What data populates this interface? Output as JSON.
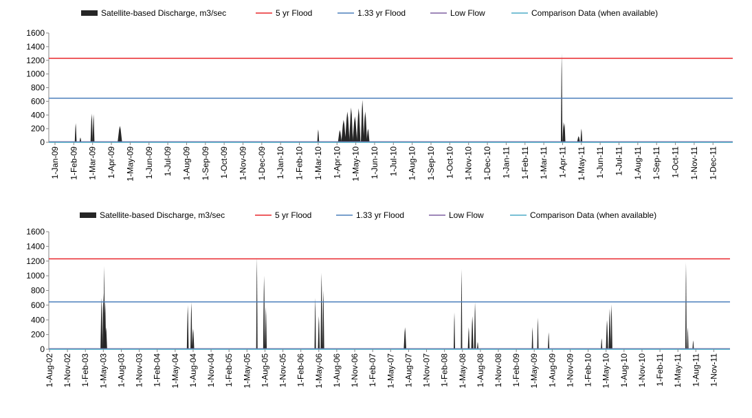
{
  "chart_data": [
    {
      "type": "area",
      "ylim": [
        0,
        1600
      ],
      "yticks": [
        0,
        200,
        400,
        600,
        800,
        1000,
        1200,
        1400,
        1600
      ],
      "x_tick_labels": [
        "1-Jan-09",
        "1-Feb-09",
        "1-Mar-09",
        "1-Apr-09",
        "1-May-09",
        "1-Jun-09",
        "1-Jul-09",
        "1-Aug-09",
        "1-Sep-09",
        "1-Oct-09",
        "1-Nov-09",
        "1-Dec-09",
        "1-Jan-10",
        "1-Feb-10",
        "1-Mar-10",
        "1-Apr-10",
        "1-May-10",
        "1-Jun-10",
        "1-Jul-10",
        "1-Aug-10",
        "1-Sep-10",
        "1-Oct-10",
        "1-Nov-10",
        "1-Dec-10",
        "1-Jan-11",
        "1-Feb-11",
        "1-Mar-11",
        "1-Apr-11",
        "1-May-11",
        "1-Jun-11",
        "1-Jul-11",
        "1-Aug-11",
        "1-Sep-11",
        "1-Oct-11",
        "1-Nov-11",
        "1-Dec-11"
      ],
      "legend": {
        "placement": "top",
        "entries": [
          {
            "label": "Satellite-based Discharge, m3/sec",
            "color": "#262626",
            "kind": "area"
          },
          {
            "label": "5 yr Flood",
            "color": "#e8262a",
            "kind": "line"
          },
          {
            "label": "1.33 yr Flood",
            "color": "#4a7ebb",
            "kind": "line"
          },
          {
            "label": "Low Flow",
            "color": "#7d5fa0",
            "kind": "line"
          },
          {
            "label": "Comparison Data (when available)",
            "color": "#4bacc6",
            "kind": "line"
          }
        ]
      },
      "reference_lines": {
        "flood_5yr": 1230,
        "flood_1_33yr": 645,
        "low_flow": 0
      },
      "discharge_peaks": [
        {
          "x": 1.1,
          "y": 280,
          "w": 0.05
        },
        {
          "x": 1.35,
          "y": 70,
          "w": 0.05
        },
        {
          "x": 1.95,
          "y": 420,
          "w": 0.06
        },
        {
          "x": 2.05,
          "y": 410,
          "w": 0.05
        },
        {
          "x": 3.45,
          "y": 240,
          "w": 0.12
        },
        {
          "x": 14.0,
          "y": 190,
          "w": 0.05
        },
        {
          "x": 15.15,
          "y": 180,
          "w": 0.1
        },
        {
          "x": 15.35,
          "y": 330,
          "w": 0.12
        },
        {
          "x": 15.55,
          "y": 450,
          "w": 0.12
        },
        {
          "x": 15.75,
          "y": 510,
          "w": 0.1
        },
        {
          "x": 15.95,
          "y": 380,
          "w": 0.12
        },
        {
          "x": 16.15,
          "y": 500,
          "w": 0.1
        },
        {
          "x": 16.35,
          "y": 620,
          "w": 0.08
        },
        {
          "x": 16.5,
          "y": 450,
          "w": 0.1
        },
        {
          "x": 16.65,
          "y": 200,
          "w": 0.08
        },
        {
          "x": 26.95,
          "y": 1300,
          "w": 0.04
        },
        {
          "x": 27.05,
          "y": 300,
          "w": 0.06
        },
        {
          "x": 27.1,
          "y": 280,
          "w": 0.05
        },
        {
          "x": 27.85,
          "y": 90,
          "w": 0.08
        },
        {
          "x": 28.0,
          "y": 200,
          "w": 0.05
        }
      ]
    },
    {
      "type": "area",
      "ylim": [
        0,
        1600
      ],
      "yticks": [
        0,
        200,
        400,
        600,
        800,
        1000,
        1200,
        1400,
        1600
      ],
      "x_tick_labels": [
        "1-Aug-02",
        "1-Nov-02",
        "1-Feb-03",
        "1-May-03",
        "1-Aug-03",
        "1-Nov-03",
        "1-Feb-04",
        "1-May-04",
        "1-Aug-04",
        "1-Nov-04",
        "1-Feb-05",
        "1-May-05",
        "1-Aug-05",
        "1-Nov-05",
        "1-Feb-06",
        "1-May-06",
        "1-Aug-06",
        "1-Nov-06",
        "1-Feb-07",
        "1-May-07",
        "1-Aug-07",
        "1-Nov-07",
        "1-Feb-08",
        "1-May-08",
        "1-Aug-08",
        "1-Nov-08",
        "1-Feb-09",
        "1-May-09",
        "1-Aug-09",
        "1-Nov-09",
        "1-Feb-10",
        "1-May-10",
        "1-Aug-10",
        "1-Nov-10",
        "1-Feb-11",
        "1-May-11",
        "1-Aug-11",
        "1-Nov-11"
      ],
      "legend": {
        "placement": "top",
        "entries": [
          {
            "label": "Satellite-based Discharge, m3/sec",
            "color": "#262626",
            "kind": "area"
          },
          {
            "label": "5 yr Flood",
            "color": "#e8262a",
            "kind": "line"
          },
          {
            "label": "1.33 yr Flood",
            "color": "#4a7ebb",
            "kind": "line"
          },
          {
            "label": "Low Flow",
            "color": "#7d5fa0",
            "kind": "line"
          },
          {
            "label": "Comparison Data (when available)",
            "color": "#4bacc6",
            "kind": "line"
          }
        ]
      },
      "reference_lines": {
        "flood_5yr": 1230,
        "flood_1_33yr": 645,
        "low_flow": 0
      },
      "discharge_peaks": [
        {
          "x": 2.9,
          "y": 700,
          "w": 0.06
        },
        {
          "x": 3.0,
          "y": 760,
          "w": 0.05
        },
        {
          "x": 3.05,
          "y": 1130,
          "w": 0.04
        },
        {
          "x": 3.1,
          "y": 650,
          "w": 0.05
        },
        {
          "x": 3.15,
          "y": 300,
          "w": 0.06
        },
        {
          "x": 7.7,
          "y": 600,
          "w": 0.05
        },
        {
          "x": 7.9,
          "y": 640,
          "w": 0.05
        },
        {
          "x": 8.0,
          "y": 280,
          "w": 0.06
        },
        {
          "x": 11.55,
          "y": 1250,
          "w": 0.03
        },
        {
          "x": 11.95,
          "y": 1000,
          "w": 0.05
        },
        {
          "x": 12.05,
          "y": 580,
          "w": 0.05
        },
        {
          "x": 14.8,
          "y": 700,
          "w": 0.04
        },
        {
          "x": 15.0,
          "y": 450,
          "w": 0.05
        },
        {
          "x": 15.15,
          "y": 1040,
          "w": 0.05
        },
        {
          "x": 15.25,
          "y": 800,
          "w": 0.05
        },
        {
          "x": 19.8,
          "y": 300,
          "w": 0.07
        },
        {
          "x": 22.55,
          "y": 500,
          "w": 0.03
        },
        {
          "x": 22.95,
          "y": 1090,
          "w": 0.03
        },
        {
          "x": 23.35,
          "y": 300,
          "w": 0.05
        },
        {
          "x": 23.55,
          "y": 450,
          "w": 0.06
        },
        {
          "x": 23.7,
          "y": 640,
          "w": 0.05
        },
        {
          "x": 23.85,
          "y": 100,
          "w": 0.04
        },
        {
          "x": 26.9,
          "y": 300,
          "w": 0.04
        },
        {
          "x": 27.2,
          "y": 430,
          "w": 0.04
        },
        {
          "x": 27.8,
          "y": 230,
          "w": 0.04
        },
        {
          "x": 30.75,
          "y": 150,
          "w": 0.04
        },
        {
          "x": 31.05,
          "y": 400,
          "w": 0.06
        },
        {
          "x": 31.2,
          "y": 550,
          "w": 0.06
        },
        {
          "x": 31.3,
          "y": 610,
          "w": 0.05
        },
        {
          "x": 35.45,
          "y": 1180,
          "w": 0.03
        },
        {
          "x": 35.55,
          "y": 300,
          "w": 0.04
        },
        {
          "x": 35.85,
          "y": 120,
          "w": 0.04
        }
      ]
    }
  ]
}
